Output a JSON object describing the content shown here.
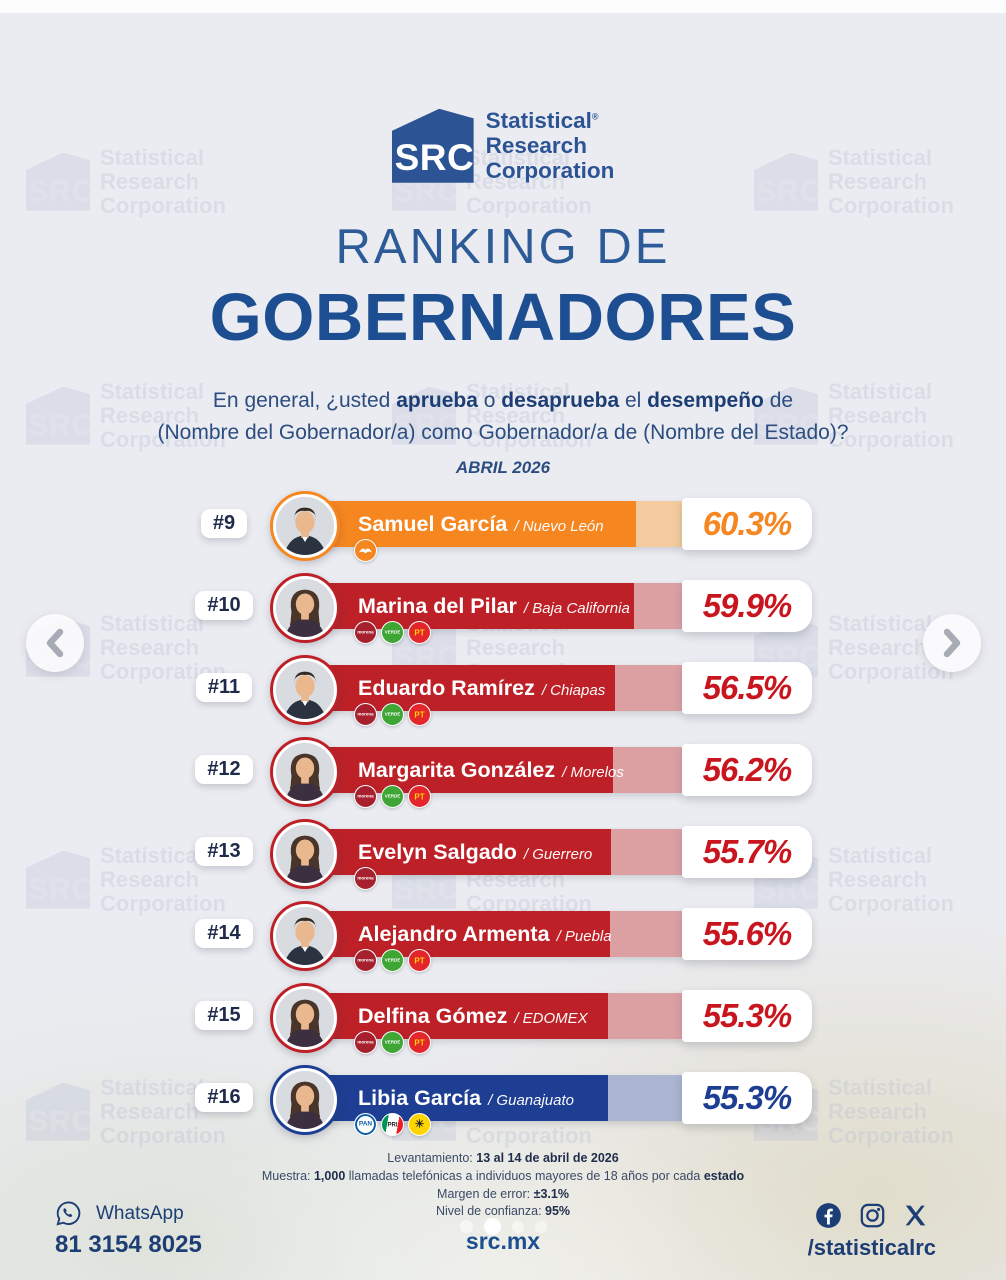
{
  "brand": {
    "acronym": "SRC",
    "name_line1": "Statistical",
    "name_line2": "Research",
    "name_line3": "Corporation",
    "registered_mark": "®"
  },
  "header": {
    "title_line1": "RANKING DE",
    "title_line2": "GOBERNADORES",
    "question": {
      "p1": "En general, ¿usted ",
      "b1": "aprueba",
      "p2": " o ",
      "b2": "desaprueba",
      "p3": " el ",
      "b3": "desempeño",
      "p4": " de",
      "line2": "(Nombre del Gobernador/a) como Gobernador/a de (Nombre del Estado)?"
    },
    "date": "ABRIL 2026"
  },
  "themes": {
    "orange": {
      "bar": "#F6861F",
      "tint": "#F3CB9E",
      "text": "#F6861F"
    },
    "red": {
      "bar": "#BD2127",
      "tint": "#DCA0A3",
      "text": "#C9151E"
    },
    "blue": {
      "bar": "#1D3E92",
      "tint": "#A9B5D1",
      "text": "#1D3E92"
    }
  },
  "parties": {
    "mc": {
      "name": "Movimiento Ciudadano",
      "bg": "#F6861F",
      "fg": "#FFFFFF",
      "label": "",
      "size": 0,
      "glyph": "bird"
    },
    "morena": {
      "name": "Morena",
      "bg": "#A6212D",
      "fg": "#FFFFFF",
      "label": "morena",
      "size": 4.5
    },
    "pvem": {
      "name": "Partido Verde",
      "bg": "#3FA535",
      "fg": "#FFFFFF",
      "label": "VERDE",
      "size": 4.5
    },
    "pt": {
      "name": "PT",
      "bg": "#E3262C",
      "fg": "#FFD400",
      "label": "PT",
      "size": 8
    },
    "pan": {
      "name": "PAN",
      "bg": "#FFFFFF",
      "fg": "#0C5DA5",
      "label": "PAN",
      "size": 6.5,
      "border": "#0C5DA5"
    },
    "pri": {
      "name": "PRI",
      "bg": "linear-gradient(100deg,#009455 0 28%,#ffffff 28% 72%,#ED1C24 72% 100%)",
      "fg": "#1a1a1a",
      "label": "PRI",
      "size": 6
    },
    "prd": {
      "name": "PRD",
      "bg": "#FFD500",
      "fg": "#2b2b2b",
      "label": "☀",
      "size": 11
    }
  },
  "rankings": [
    {
      "rank": "#9",
      "name": "Samuel García",
      "state": "/ Nuevo León",
      "value": 60.3,
      "pct_label": "60.3%",
      "theme": "orange",
      "parties": [
        "mc"
      ],
      "photo": "male"
    },
    {
      "rank": "#10",
      "name": "Marina del Pilar",
      "state": "/ Baja California",
      "value": 59.9,
      "pct_label": "59.9%",
      "theme": "red",
      "parties": [
        "morena",
        "pvem",
        "pt"
      ],
      "photo": "female"
    },
    {
      "rank": "#11",
      "name": "Eduardo Ramírez",
      "state": "/ Chiapas",
      "value": 56.5,
      "pct_label": "56.5%",
      "theme": "red",
      "parties": [
        "morena",
        "pvem",
        "pt"
      ],
      "photo": "male"
    },
    {
      "rank": "#12",
      "name": "Margarita González",
      "state": "/ Morelos",
      "value": 56.2,
      "pct_label": "56.2%",
      "theme": "red",
      "parties": [
        "morena",
        "pvem",
        "pt"
      ],
      "photo": "female"
    },
    {
      "rank": "#13",
      "name": "Evelyn Salgado",
      "state": "/ Guerrero",
      "value": 55.7,
      "pct_label": "55.7%",
      "theme": "red",
      "parties": [
        "morena"
      ],
      "photo": "female"
    },
    {
      "rank": "#14",
      "name": "Alejandro Armenta",
      "state": "/ Puebla",
      "value": 55.6,
      "pct_label": "55.6%",
      "theme": "red",
      "parties": [
        "morena",
        "pvem",
        "pt"
      ],
      "photo": "male"
    },
    {
      "rank": "#15",
      "name": "Delfina Gómez",
      "state": "/ EDOMEX",
      "value": 55.3,
      "pct_label": "55.3%",
      "theme": "red",
      "parties": [
        "morena",
        "pvem",
        "pt"
      ],
      "photo": "female"
    },
    {
      "rank": "#16",
      "name": "Libia García",
      "state": "/ Guanajuato",
      "value": 55.3,
      "pct_label": "55.3%",
      "theme": "blue",
      "parties": [
        "pan",
        "pri",
        "prd"
      ],
      "photo": "female"
    }
  ],
  "chart_data": {
    "type": "bar",
    "orientation": "horizontal",
    "title": "Ranking de Gobernadores — Abril 2026",
    "categories": [
      "Samuel García (Nuevo León)",
      "Marina del Pilar (Baja California)",
      "Eduardo Ramírez (Chiapas)",
      "Margarita González (Morelos)",
      "Evelyn Salgado (Guerrero)",
      "Alejandro Armenta (Puebla)",
      "Delfina Gómez (EDOMEX)",
      "Libia García (Guanajuato)"
    ],
    "ranks": [
      9,
      10,
      11,
      12,
      13,
      14,
      15,
      16
    ],
    "values": [
      60.3,
      59.9,
      56.5,
      56.2,
      55.7,
      55.6,
      55.3,
      55.3
    ],
    "unit": "%",
    "xlim": [
      0,
      68.5
    ],
    "bar_colors": [
      "#F6861F",
      "#BD2127",
      "#BD2127",
      "#BD2127",
      "#BD2127",
      "#BD2127",
      "#BD2127",
      "#1D3E92"
    ]
  },
  "methodology": [
    [
      {
        "t": "Levantamiento: "
      },
      {
        "t": "13 al 14 de abril de 2026",
        "b": true
      }
    ],
    [
      {
        "t": "Muestra: "
      },
      {
        "t": "1,000",
        "b": true
      },
      {
        "t": " llamadas telefónicas a individuos mayores de 18 años por cada "
      },
      {
        "t": "estado",
        "b": true
      }
    ],
    [
      {
        "t": "Margen de error: "
      },
      {
        "t": "±3.1%",
        "b": true
      }
    ],
    [
      {
        "t": "Nivel de confianza: "
      },
      {
        "t": "95%",
        "b": true
      }
    ]
  ],
  "footer": {
    "whatsapp_label": "WhatsApp",
    "whatsapp_number": "81 3154 8025",
    "website": "src.mx",
    "social_handle": "/statisticalrc"
  },
  "carousel": {
    "dots": [
      {
        "size": 13,
        "opacity": 0.55
      },
      {
        "size": 17,
        "opacity": 0.95
      },
      {
        "size": 12,
        "opacity": 0.5
      },
      {
        "size": 12,
        "opacity": 0.45
      }
    ]
  }
}
